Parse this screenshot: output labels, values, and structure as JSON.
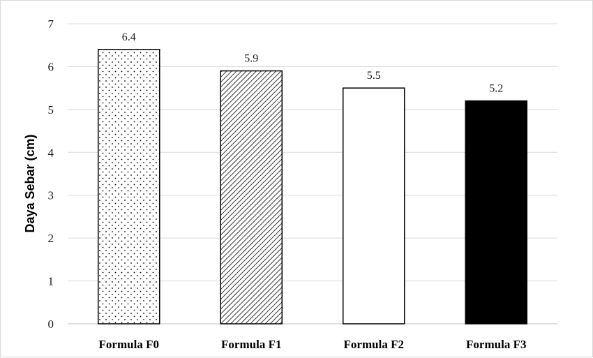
{
  "chart_data": {
    "type": "bar",
    "title": "",
    "xlabel": "",
    "ylabel": "Daya Sebar (cm)",
    "categories": [
      "Formula F0",
      "Formula F1",
      "Formula F2",
      "Formula F3"
    ],
    "values": [
      6.4,
      5.9,
      5.5,
      5.2
    ],
    "data_labels": [
      "6.4",
      "5.9",
      "5.5",
      "5.2"
    ],
    "bar_fills": [
      "dots",
      "diagonal-hatch",
      "white",
      "black"
    ],
    "ylim": [
      0,
      7
    ],
    "yticks": [
      0,
      1,
      2,
      3,
      4,
      5,
      6,
      7
    ],
    "grid": true,
    "legend": "none",
    "colors": {
      "gridline": "#d9d9d9",
      "bar_outline": "#000000",
      "solid_bar": "#000000"
    }
  }
}
